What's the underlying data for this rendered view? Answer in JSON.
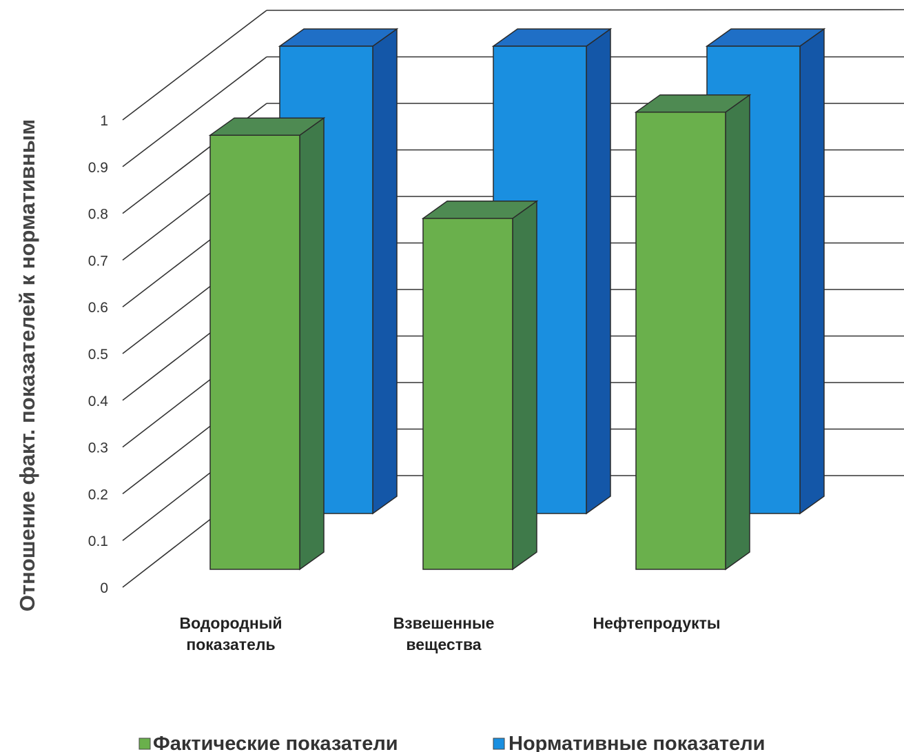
{
  "chart_data": {
    "type": "bar",
    "title": "",
    "xlabel": "",
    "ylabel": "Отношение факт. показателей к нормативным",
    "categories": [
      [
        "Водородный",
        "показатель"
      ],
      [
        "Взвешенные",
        "вещества"
      ],
      [
        "Нефтепродукты"
      ]
    ],
    "series": [
      {
        "name": "Фактические показатели",
        "values": [
          0.94,
          0.76,
          0.99
        ],
        "color": "#6ab04c"
      },
      {
        "name": "Нормативные показатели",
        "values": [
          1,
          1,
          1
        ],
        "color": "#1a8fe0"
      }
    ],
    "ylim": [
      0,
      1
    ],
    "yticks": [
      "0",
      "0.1",
      "0.2",
      "0.3",
      "0.4",
      "0.5",
      "0.6",
      "0.7",
      "0.8",
      "0.9",
      "1"
    ],
    "grid": true,
    "legend_position": "bottom"
  }
}
